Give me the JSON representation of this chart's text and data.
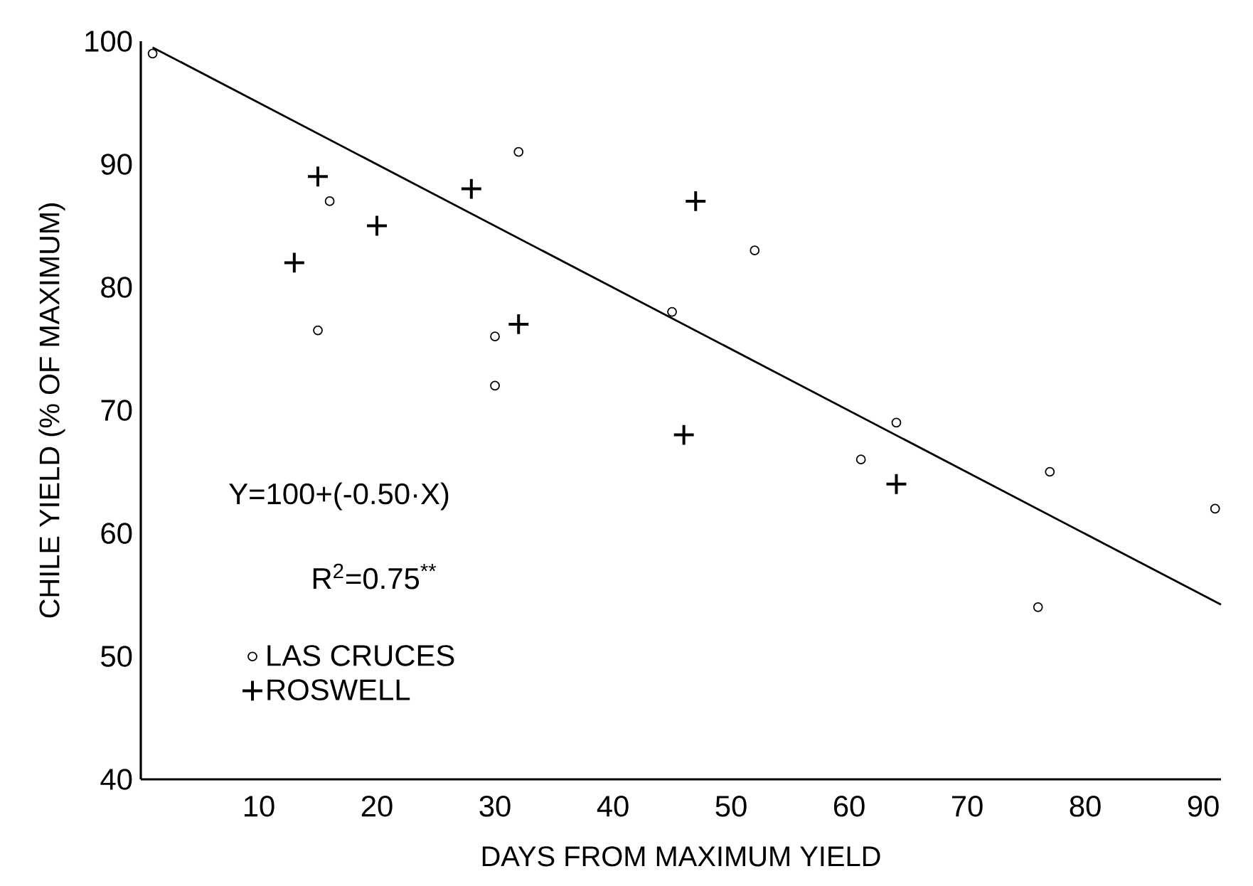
{
  "chart_data": {
    "type": "scatter",
    "xlabel": "DAYS FROM MAXIMUM YIELD",
    "ylabel": "CHILE YIELD (% OF MAXIMUM)",
    "xlim": [
      0,
      91.5
    ],
    "ylim": [
      40,
      100
    ],
    "xticks": [
      10,
      20,
      30,
      40,
      50,
      60,
      70,
      80,
      90
    ],
    "yticks": [
      40,
      50,
      60,
      70,
      80,
      90,
      100
    ],
    "grid": false,
    "legend": "bottom left",
    "annotations": [
      "Y=100+(-0.50·X)",
      "R$^{2}$=0.75$^{**}$"
    ],
    "series": [
      {
        "name": "LAS CRUCES",
        "color": "#000000",
        "marker": "circle",
        "x": [
          1,
          16,
          15,
          32,
          30,
          30,
          45,
          52,
          64,
          61,
          77,
          76,
          91
        ],
        "values": [
          99,
          87,
          76.5,
          91,
          76,
          72,
          78,
          83,
          69,
          66,
          65,
          54,
          62
        ]
      },
      {
        "name": "ROSWELL",
        "color": "#000000",
        "marker": "cross",
        "x": [
          15,
          13,
          20,
          28,
          32,
          47,
          46,
          64
        ],
        "values": [
          89,
          82,
          85,
          88,
          77,
          87,
          68,
          64
        ]
      },
      {
        "type": "line",
        "color": "#000000",
        "line_style": "solid",
        "x": [
          1,
          91.5
        ],
        "values": [
          99.5,
          54.2
        ]
      }
    ]
  }
}
